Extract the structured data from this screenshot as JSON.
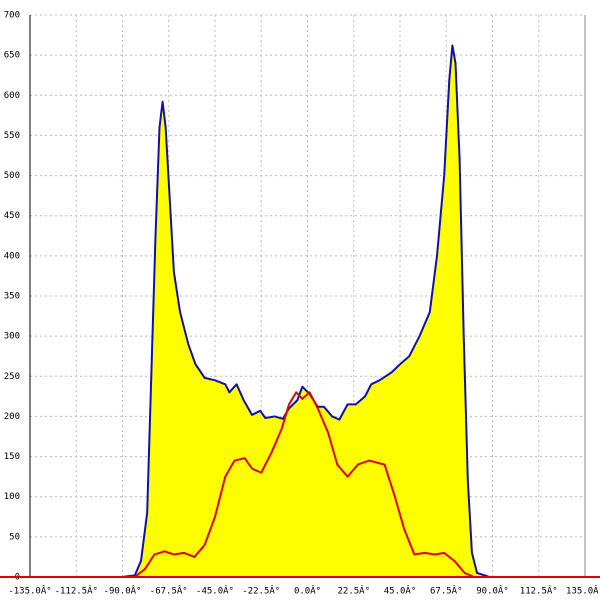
{
  "chart_data": {
    "type": "area",
    "xlim": [
      -135,
      135
    ],
    "ylim": [
      0,
      700
    ],
    "xticks": [
      {
        "value": -135,
        "label": "-135.0Â°"
      },
      {
        "value": -112.5,
        "label": "-112.5Â°"
      },
      {
        "value": -90,
        "label": "-90.0Â°"
      },
      {
        "value": -67.5,
        "label": "-67.5Â°"
      },
      {
        "value": -45,
        "label": "-45.0Â°"
      },
      {
        "value": -22.5,
        "label": "-22.5Â°"
      },
      {
        "value": 0,
        "label": "0.0Â°"
      },
      {
        "value": 22.5,
        "label": "22.5Â°"
      },
      {
        "value": 45,
        "label": "45.0Â°"
      },
      {
        "value": 67.5,
        "label": "67.5Â°"
      },
      {
        "value": 90,
        "label": "90.0Â°"
      },
      {
        "value": 112.5,
        "label": "112.5Â°"
      },
      {
        "value": 135,
        "label": "135.0Â°"
      }
    ],
    "yticks": [
      0,
      50,
      100,
      150,
      200,
      250,
      300,
      350,
      400,
      450,
      500,
      550,
      600,
      650,
      700
    ],
    "grid": true,
    "series": [
      {
        "color": "#1010b0",
        "fill": "#ffff00",
        "x": [
          -90.5,
          -84,
          -81,
          -78,
          -76,
          -74,
          -72,
          -70.5,
          -69,
          -67,
          -65,
          -62,
          -58,
          -54.5,
          -50,
          -45,
          -40,
          -38,
          -34.5,
          -31,
          -27,
          -23,
          -20.5,
          -16,
          -12,
          -9,
          -5,
          -2.5,
          1,
          5,
          8,
          12,
          15.5,
          19.5,
          23.5,
          28,
          31,
          35,
          41,
          45,
          49.5,
          54.5,
          59.5,
          63,
          66.5,
          69,
          70.5,
          72,
          74,
          76,
          78,
          80,
          82.5,
          88.5
        ],
        "values": [
          0,
          2,
          20,
          80,
          250,
          420,
          560,
          592,
          560,
          470,
          380,
          330,
          290,
          265,
          248,
          245,
          240,
          230,
          240,
          220,
          202,
          207,
          198,
          200,
          197,
          210,
          220,
          237,
          228,
          212,
          212,
          200,
          196,
          215,
          215,
          225,
          240,
          245,
          255,
          265,
          275,
          300,
          330,
          400,
          500,
          620,
          662,
          640,
          520,
          300,
          120,
          30,
          5,
          0
        ]
      },
      {
        "color": "#e00000",
        "x": [
          -84,
          -79,
          -74.5,
          -69.5,
          -65,
          -60,
          -55,
          -50,
          -45,
          -40,
          -35.5,
          -30.5,
          -27,
          -22.5,
          -17.5,
          -12.5,
          -9,
          -5.5,
          -2.5,
          1,
          5,
          10,
          14.5,
          19.5,
          24.5,
          30,
          37.5,
          42.5,
          47,
          52,
          57,
          62,
          66.5,
          71.5,
          76.5,
          81
        ],
        "values": [
          0,
          10,
          28,
          32,
          28,
          30,
          25,
          40,
          75,
          125,
          145,
          148,
          135,
          130,
          155,
          185,
          215,
          230,
          222,
          230,
          210,
          180,
          140,
          125,
          140,
          145,
          140,
          100,
          60,
          28,
          30,
          28,
          30,
          20,
          5,
          0
        ]
      }
    ]
  }
}
